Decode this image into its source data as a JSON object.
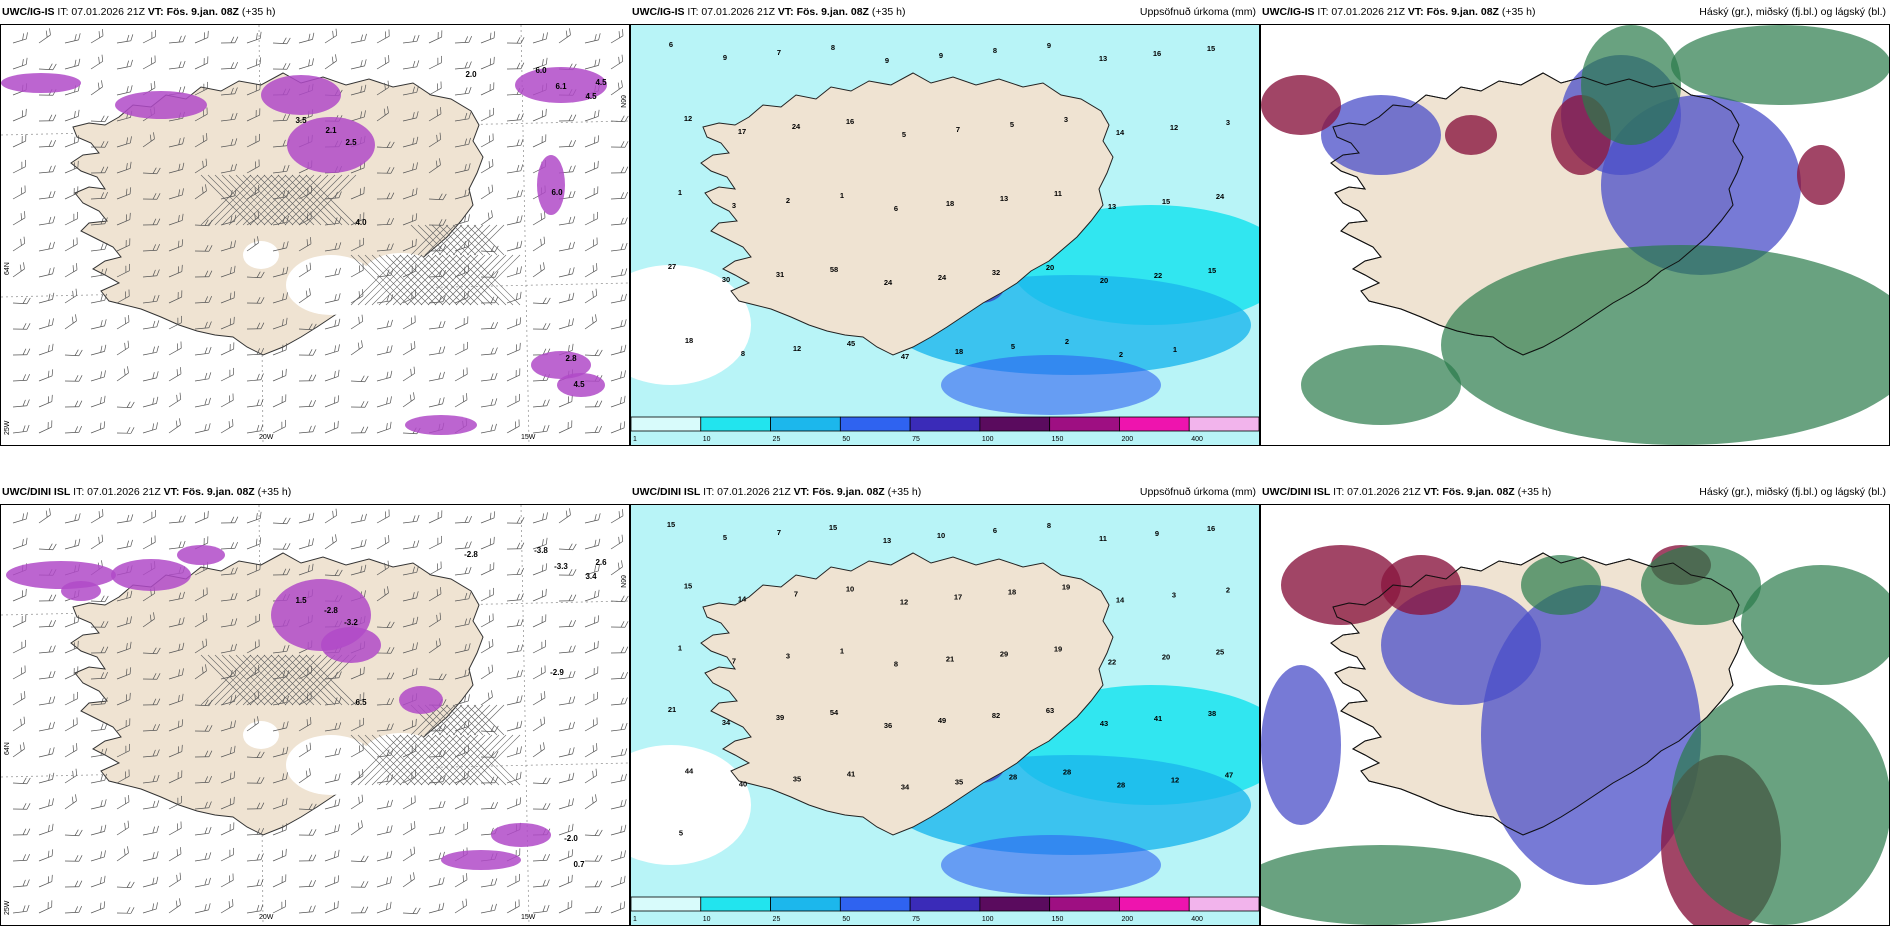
{
  "panels": [
    {
      "model": "UWC/IG-IS",
      "it": "IT: 07.01.2026 21Z",
      "vt_label": "VT:",
      "vt": "Fös. 9.jan. 08Z",
      "lead": "(+35 h)",
      "right": ""
    },
    {
      "model": "UWC/IG-IS",
      "it": "IT: 07.01.2026 21Z",
      "vt_label": "VT:",
      "vt": "Fös. 9.jan. 08Z",
      "lead": "(+35 h)",
      "right": "Uppsöfnuð úrkoma (mm)"
    },
    {
      "model": "UWC/IG-IS",
      "it": "IT: 07.01.2026 21Z",
      "vt_label": "VT:",
      "vt": "Fös. 9.jan. 08Z",
      "lead": "(+35 h)",
      "right": "Háský (gr.), miðský (fj.bl.) og lágský (bl.)"
    },
    {
      "model": "UWC/DINI ISL",
      "it": "IT: 07.01.2026 21Z",
      "vt_label": "VT:",
      "vt": "Fös. 9.jan. 08Z",
      "lead": "(+35 h)",
      "right": ""
    },
    {
      "model": "UWC/DINI ISL",
      "it": "IT: 07.01.2026 21Z",
      "vt_label": "VT:",
      "vt": "Fös. 9.jan. 08Z",
      "lead": "(+35 h)",
      "right": "Uppsöfnuð úrkoma (mm)"
    },
    {
      "model": "UWC/DINI ISL",
      "it": "IT: 07.01.2026 21Z",
      "vt_label": "VT:",
      "vt": "Fös. 9.jan. 08Z",
      "lead": "(+35 h)",
      "right": "Háský (gr.), miðský (fj.bl.) og lágský (bl.)"
    }
  ],
  "axis_labels": {
    "lon_20": "20W",
    "lon_15": "15W",
    "lat_66": "66N",
    "lat_64": "64N",
    "lon_25": "25W"
  },
  "colorbar": {
    "labels": [
      "1",
      "10",
      "25",
      "50",
      "75",
      "100",
      "150",
      "200",
      "400"
    ],
    "colors": [
      "#d8fbfb",
      "#22e4ee",
      "#1cb7ec",
      "#2f63f0",
      "#3a2bb8",
      "#5a0b5e",
      "#9e0f82",
      "#ee14ae",
      "#f2b4ec"
    ]
  },
  "precip_labels_top": [
    "6",
    "9",
    "7",
    "8",
    "9",
    "9",
    "8",
    "9",
    "13",
    "16",
    "15",
    "12",
    "17",
    "24",
    "16",
    "5",
    "7",
    "5",
    "3",
    "14",
    "12",
    "3",
    "1",
    "3",
    "2",
    "1",
    "6",
    "18",
    "13",
    "11",
    "13",
    "15",
    "24",
    "27",
    "30",
    "31",
    "58",
    "24",
    "24",
    "32",
    "20",
    "20",
    "22",
    "15",
    "18",
    "8",
    "12",
    "45",
    "47",
    "18",
    "5",
    "2",
    "2",
    "1"
  ],
  "precip_labels_bottom": [
    "15",
    "5",
    "7",
    "15",
    "13",
    "10",
    "6",
    "8",
    "11",
    "9",
    "16",
    "15",
    "14",
    "7",
    "10",
    "12",
    "17",
    "18",
    "19",
    "14",
    "3",
    "2",
    "1",
    "7",
    "3",
    "1",
    "8",
    "21",
    "29",
    "19",
    "22",
    "20",
    "25",
    "21",
    "34",
    "39",
    "54",
    "36",
    "49",
    "82",
    "63",
    "43",
    "41",
    "38",
    "44",
    "40",
    "35",
    "41",
    "34",
    "35",
    "28",
    "28",
    "28",
    "12",
    "47",
    "5"
  ],
  "wind_values_top": [
    "2.0",
    "6.0",
    "6.1",
    "4.5",
    "4.5",
    "3.5",
    "2.1",
    "2.5",
    "6.0",
    "2.8",
    "4.5",
    "4.0"
  ],
  "wind_values_bottom": [
    "-2.8",
    "-3.8",
    "-3.3",
    "3.4",
    "2.6",
    "1.5",
    "-2.8",
    "-3.2",
    "-2.9",
    "-2.0",
    "0.7",
    "6.5"
  ],
  "colors": {
    "land": "#efe3d2",
    "sea": "#ffffff",
    "precip_light": "#b8f4f7",
    "precip_mid": "#22e4ee",
    "snow": "#b04ac8",
    "high_cloud": "#2a7a4a",
    "mid_cloud": "#4a4ec8",
    "low_cloud": "#8a1640"
  },
  "icons": {
    "wind_barb": "wind-barb-icon",
    "hatch": "crosshatch-icon"
  }
}
